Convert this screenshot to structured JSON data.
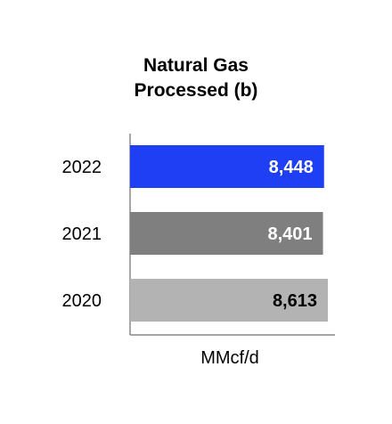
{
  "chart_data": {
    "type": "bar",
    "orientation": "horizontal",
    "title": [
      "Natural Gas",
      "Processed (b)"
    ],
    "xlabel": "MMcf/d",
    "ylabel": "",
    "categories": [
      "2022",
      "2021",
      "2020"
    ],
    "values": [
      8448,
      8401,
      8613
    ],
    "value_labels": [
      "8,448",
      "8,401",
      "8,613"
    ],
    "bar_colors": [
      "#1f3ff5",
      "#7f7f7f",
      "#b3b3b3"
    ],
    "label_colors": [
      "#ffffff",
      "#ffffff",
      "#000000"
    ],
    "grid": false,
    "legend": "none"
  }
}
